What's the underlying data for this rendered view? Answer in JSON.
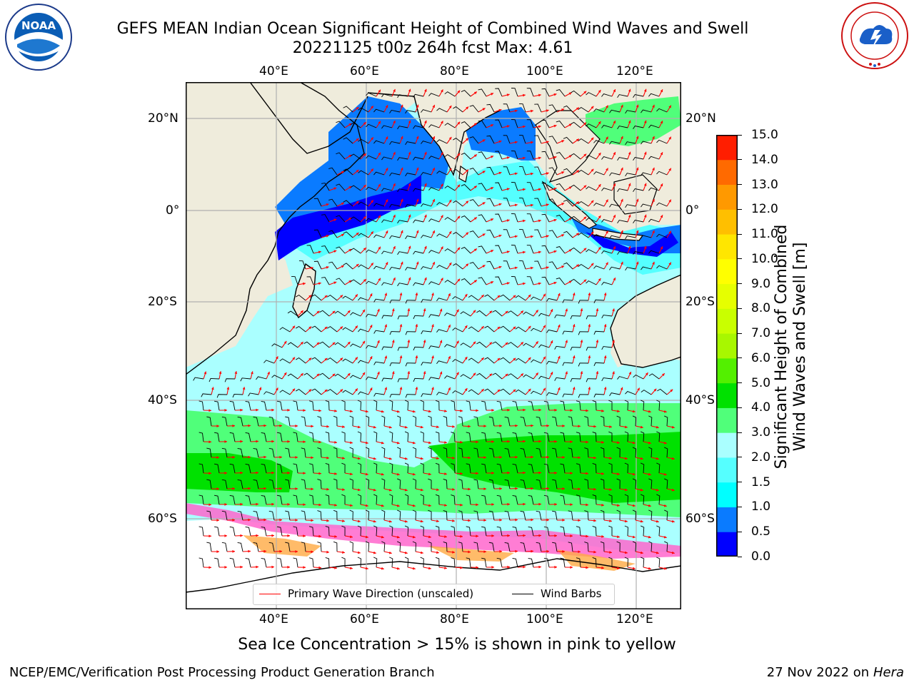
{
  "header": {
    "title_line1": "GEFS MEAN Indian Ocean Significant Height of Combined Wind Waves and Swell",
    "title_line2": "20221125 t00z 264h fcst   Max: 4.61"
  },
  "logos": {
    "left": {
      "text": "NOAA",
      "ring_text": "NATIONAL OCEANIC AND ATMOSPHERIC ADMINISTRATION · U.S. DEPARTMENT OF COMMERCE"
    },
    "right": {
      "ring_text": "NATIONAL WEATHER SERVICE"
    }
  },
  "map": {
    "lon_top_labels": [
      "40°E",
      "60°E",
      "80°E",
      "100°E",
      "120°E"
    ],
    "lon_bottom_labels": [
      "40°E",
      "60°E",
      "80°E",
      "100°E",
      "120°E"
    ],
    "lat_left_labels": [
      "20°N",
      "0°",
      "20°S",
      "40°S",
      "60°S"
    ],
    "lat_right_labels": [
      "20°N",
      "0°",
      "20°S",
      "40°S",
      "60°S"
    ],
    "colors": {
      "land": "#efecdc",
      "coast": "#000000",
      "grid": "#b0b0b0",
      "ice": "#ffffff",
      "wave_arrow": "#ff0000",
      "wind_barb": "#000000"
    },
    "legend": {
      "wave_label": "Primary Wave Direction (unscaled)",
      "wind_label": "Wind Barbs"
    }
  },
  "colorbar": {
    "levels": [
      "0.0",
      "0.5",
      "1.0",
      "1.5",
      "2.0",
      "3.0",
      "4.0",
      "5.0",
      "6.0",
      "7.0",
      "8.0",
      "9.0",
      "10.0",
      "11.0",
      "12.0",
      "13.0",
      "14.0",
      "15.0"
    ],
    "colors": [
      "#0000ff",
      "#0a7bff",
      "#00ffff",
      "#55ffff",
      "#aaffff",
      "#50ff7a",
      "#00e100",
      "#53f000",
      "#a8f700",
      "#c9ff00",
      "#e6ff00",
      "#ffff00",
      "#ffe600",
      "#ffbf00",
      "#ff9900",
      "#ff6a00",
      "#ff1e00"
    ],
    "label": "Significant Height of Combined\nWind Waves and Swell [m]"
  },
  "notes": {
    "ice_note": "Sea Ice Concentration > 15% is shown in pink to yellow",
    "credit": "NCEP/EMC/Verification Post Processing Product Generation Branch",
    "date_text": "27 Nov 2022 on",
    "host": "Hera"
  }
}
